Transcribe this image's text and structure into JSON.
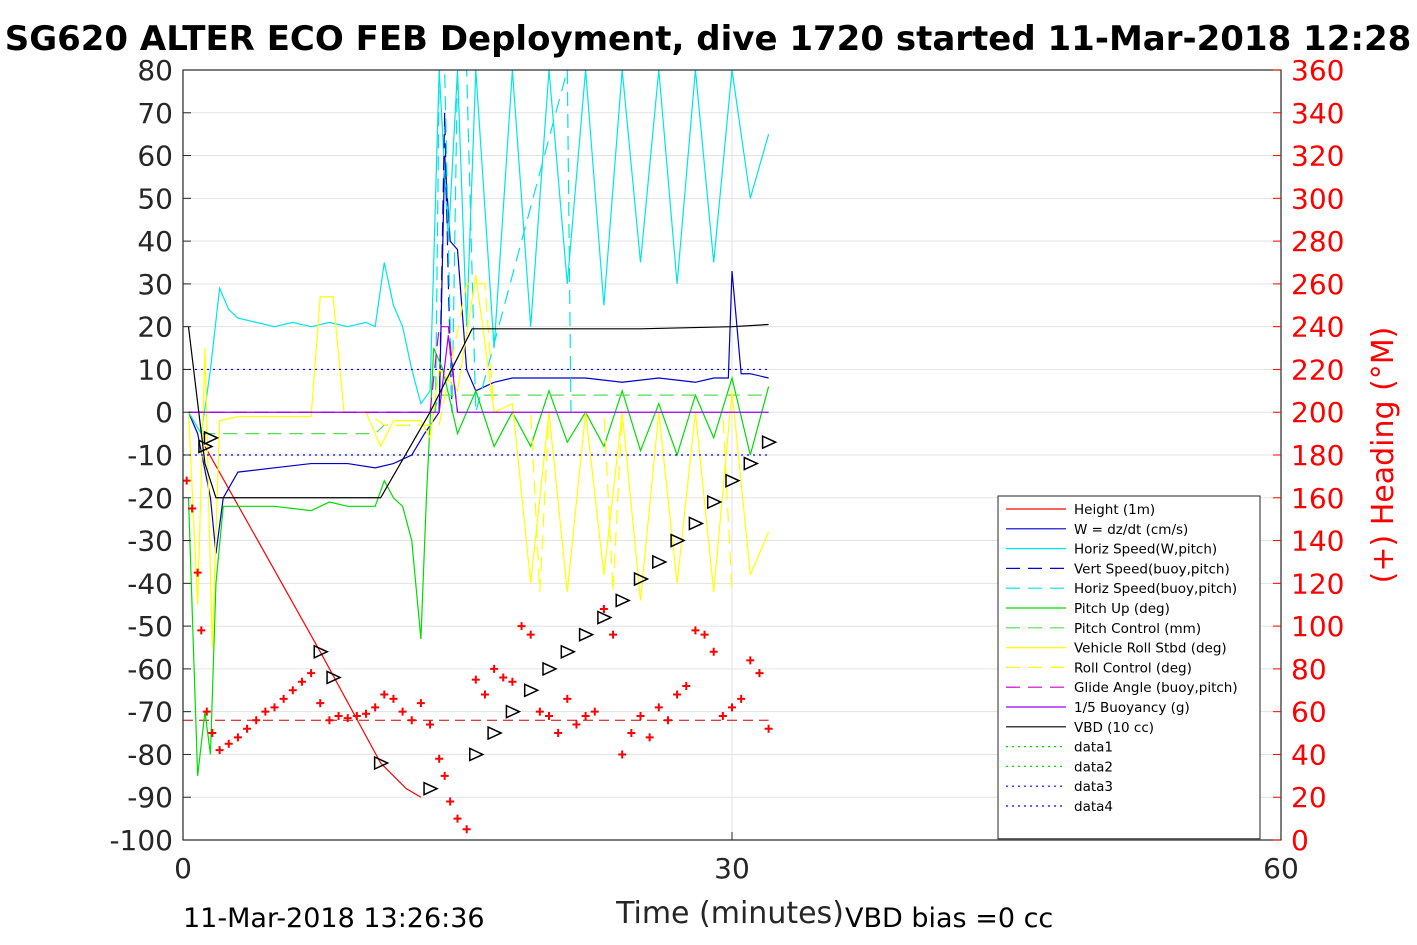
{
  "chart_data": {
    "type": "line",
    "title": "SG620 ALTER ECO FEB Deployment, dive 1720 started 11-Mar-2018 12:28",
    "xlabel": "Time (minutes)",
    "ylabel": "",
    "y2label": "(+) Heading (°M)",
    "xlim": [
      0,
      60
    ],
    "ylim": [
      -100,
      80
    ],
    "y2lim": [
      0,
      360
    ],
    "xticks": [
      0,
      30,
      60
    ],
    "yticks": [
      80,
      70,
      60,
      50,
      40,
      30,
      20,
      10,
      0,
      -10,
      -20,
      -30,
      -40,
      -50,
      -60,
      -70,
      -80,
      -90,
      -100
    ],
    "y2ticks": [
      360,
      340,
      320,
      300,
      280,
      260,
      240,
      220,
      200,
      180,
      160,
      140,
      120,
      100,
      80,
      60,
      40,
      20,
      0
    ],
    "grid": true,
    "legend_position": "right",
    "footer_left": "11-Mar-2018 13:26:36",
    "footer_right": "VBD bias =0 cc",
    "colors": {
      "height": "#ff0000",
      "w": "#0000cc",
      "horiz_speed": "#00e5e5",
      "pitch": "#00dd00",
      "roll": "#ffff00",
      "glide": "#cc00cc",
      "vbd": "#000000",
      "heading": "#ff0000",
      "data3": "#0000ff"
    },
    "series": [
      {
        "name": "Height (1m)",
        "style": "solid",
        "color": "#ff0000",
        "x": [
          1.2,
          7.5,
          10.8,
          12.2,
          13.0
        ],
        "y": [
          -8,
          -56,
          -82,
          -88,
          -90
        ]
      },
      {
        "name": "W = dz/dt (cm/s)",
        "style": "solid",
        "color": "#0000cc",
        "x": [
          0.3,
          0.8,
          1.5,
          1.8,
          2.2,
          3,
          5,
          7,
          9,
          10.5,
          11.5,
          12.5,
          13.2,
          14.0,
          14.3,
          14.6,
          15.0,
          15.5,
          16,
          17,
          18,
          20,
          22,
          24,
          26,
          28,
          29,
          29.8,
          30,
          30.5,
          31,
          32
        ],
        "y": [
          0,
          -5,
          -20,
          -33,
          -20,
          -14,
          -13,
          -12,
          -12,
          -13,
          -12,
          -10,
          -5,
          0,
          60,
          40,
          38,
          10,
          5,
          7,
          8,
          8,
          8,
          7,
          8,
          7,
          8,
          8,
          33,
          9,
          9,
          8
        ]
      },
      {
        "name": "Horiz Speed(W,pitch)",
        "style": "solid",
        "color": "#00e5e5",
        "x": [
          0.3,
          1,
          1.5,
          2,
          2.5,
          3,
          4,
          5,
          6,
          7,
          8,
          9,
          10,
          10.5,
          11,
          11.5,
          12,
          12.5,
          13.0,
          13.5,
          14,
          14.5,
          15,
          15.5,
          16,
          17,
          18,
          19,
          20,
          21,
          22,
          23,
          24,
          25,
          26,
          27,
          28,
          29,
          30,
          31,
          32
        ],
        "y": [
          0,
          -5,
          10,
          29,
          24,
          22,
          21,
          20,
          21,
          20,
          21,
          20,
          21,
          20,
          35,
          25,
          20,
          10,
          2,
          5,
          80,
          40,
          80,
          20,
          80,
          15,
          80,
          20,
          80,
          30,
          80,
          25,
          80,
          35,
          80,
          30,
          80,
          35,
          80,
          50,
          65
        ]
      },
      {
        "name": "Vert Speed(buoy,pitch)",
        "style": "dashed",
        "color": "#0000cc",
        "x": [
          14.0,
          14.3,
          14.5,
          14.7
        ],
        "y": [
          0,
          70,
          30,
          0
        ]
      },
      {
        "name": "Horiz Speed(buoy,pitch)",
        "style": "dashed",
        "color": "#00e5e5",
        "x": [
          13.8,
          14.0,
          14.3,
          14.7,
          15,
          15.5,
          16,
          21.0,
          21.2
        ],
        "y": [
          0,
          80,
          80,
          0,
          80,
          80,
          0,
          80,
          0
        ]
      },
      {
        "name": "Pitch Up (deg)",
        "style": "solid",
        "color": "#00dd00",
        "x": [
          0.3,
          0.8,
          1.2,
          1.5,
          1.8,
          2.2,
          3,
          5,
          7,
          8,
          9,
          10,
          10.5,
          11,
          11.5,
          12,
          12.5,
          13.0,
          13.3,
          13.7,
          14.2,
          15,
          16,
          17,
          18,
          19,
          20,
          21,
          22,
          23,
          24,
          25,
          26,
          27,
          28,
          29,
          30,
          31,
          32
        ],
        "y": [
          -20,
          -85,
          -70,
          -80,
          -40,
          -22,
          -22,
          -22,
          -23,
          -21,
          -22,
          -22,
          -22,
          -16,
          -20,
          -22,
          -30,
          -53,
          -20,
          15,
          10,
          -5,
          5,
          -8,
          0,
          -8,
          5,
          -7,
          0,
          -8,
          5,
          -9,
          2,
          -10,
          4,
          -6,
          8,
          -10,
          6
        ]
      },
      {
        "name": "Pitch Control (mm)",
        "style": "dashed",
        "color": "#55dd55",
        "x": [
          1,
          4,
          8,
          10.5,
          11,
          13.5,
          14,
          32
        ],
        "y": [
          -5,
          -5,
          -5,
          -5,
          -3,
          -3,
          4,
          4
        ]
      },
      {
        "name": "Vehicle Roll Stbd (deg)",
        "style": "solid",
        "color": "#ffff00",
        "x": [
          0.3,
          0.8,
          1.2,
          1.6,
          2,
          3,
          5,
          7,
          7.5,
          8.2,
          8.8,
          10,
          10.8,
          11.5,
          13,
          13.5,
          14,
          15,
          16,
          17,
          18,
          19,
          20,
          21,
          22,
          23,
          24,
          25,
          26,
          27,
          28,
          29,
          30,
          31,
          32
        ],
        "y": [
          0,
          -45,
          15,
          -55,
          -2,
          -1,
          -1,
          -1,
          27,
          27,
          0,
          0,
          -8,
          -2,
          -2,
          -6,
          10,
          5,
          32,
          0,
          2,
          -40,
          0,
          -42,
          0,
          -38,
          0,
          -44,
          0,
          -40,
          0,
          -42,
          5,
          -38,
          -28
        ]
      },
      {
        "name": "Roll Control (deg)",
        "style": "dashed",
        "color": "#ffff00",
        "x": [
          1,
          6,
          10,
          11,
          14,
          15.5,
          16.5,
          17,
          19,
          19.5,
          20,
          23,
          23.5,
          24,
          29.5,
          30
        ],
        "y": [
          0,
          0,
          0,
          -3,
          -3,
          30,
          30,
          0,
          0,
          -42,
          0,
          0,
          -42,
          0,
          0,
          -42
        ]
      },
      {
        "name": "Glide Angle (buoy,pitch)",
        "style": "dashed",
        "color": "#cc00cc",
        "x": [
          0.3,
          13.5,
          14.0,
          14.5,
          15
        ],
        "y": [
          0,
          0,
          20,
          20,
          0
        ]
      },
      {
        "name": "1/5 Buoyancy (g)",
        "style": "solid",
        "color": "#9900ff",
        "x": [
          0.3,
          14,
          14.5,
          15,
          32
        ],
        "y": [
          0,
          0,
          18,
          0,
          0
        ]
      },
      {
        "name": "VBD (10 cc)",
        "style": "solid",
        "color": "#000000",
        "x": [
          0.3,
          1.2,
          1.8,
          10.8,
          13.5,
          15.8,
          25,
          30,
          32
        ],
        "y": [
          20,
          -12,
          -20,
          -20,
          0,
          19.5,
          19.5,
          20,
          20.5
        ]
      },
      {
        "name": "data1",
        "style": "dotted",
        "color": "#00dd00",
        "x": [],
        "y": []
      },
      {
        "name": "data2",
        "style": "dotted",
        "color": "#00dd00",
        "x": [],
        "y": []
      },
      {
        "name": "data3",
        "style": "dotted",
        "color": "#0000ff",
        "x": [
          0,
          32
        ],
        "y": [
          10,
          10
        ]
      },
      {
        "name": "data4",
        "style": "dotted",
        "color": "#0000ff",
        "x": [
          0,
          32
        ],
        "y": [
          -10,
          -10
        ]
      }
    ],
    "heading_series": {
      "name": "Heading",
      "color": "#ff0000",
      "x": [
        0.2,
        0.5,
        0.8,
        1.0,
        1.3,
        1.6,
        2.0,
        2.5,
        3,
        3.5,
        4,
        4.5,
        5,
        5.5,
        6,
        6.5,
        7,
        7.5,
        8,
        8.5,
        9,
        9.5,
        10,
        10.5,
        11,
        11.5,
        12,
        12.5,
        13,
        13.5,
        14,
        14.3,
        14.6,
        15,
        15.5,
        16,
        16.5,
        17,
        17.5,
        18,
        18.5,
        19,
        19.5,
        20,
        20.5,
        21,
        21.5,
        22,
        22.5,
        23,
        23.5,
        24,
        24.5,
        25,
        25.5,
        26,
        26.5,
        27,
        27.5,
        28,
        28.5,
        29,
        29.5,
        30,
        30.5,
        31,
        31.5,
        32
      ],
      "y": [
        168,
        155,
        125,
        98,
        60,
        50,
        42,
        45,
        48,
        52,
        56,
        60,
        62,
        66,
        70,
        74,
        78,
        64,
        56,
        58,
        57,
        58,
        59,
        62,
        68,
        66,
        60,
        56,
        64,
        54,
        38,
        30,
        18,
        10,
        5,
        75,
        68,
        80,
        76,
        74,
        100,
        96,
        60,
        58,
        50,
        66,
        54,
        58,
        60,
        108,
        96,
        40,
        50,
        58,
        48,
        62,
        56,
        68,
        72,
        98,
        96,
        88,
        58,
        62,
        66,
        84,
        78,
        52
      ]
    },
    "vbd_markers": {
      "color": "#000000",
      "x": [
        1.2,
        1.5,
        7.5,
        8.2,
        10.8,
        13.5,
        16,
        17,
        18,
        19,
        20,
        21,
        22,
        23,
        24,
        25,
        26,
        27,
        28,
        29,
        30,
        31,
        32
      ],
      "y": [
        -8,
        -6,
        -56,
        -62,
        -82,
        -88,
        -80,
        -75,
        -70,
        -65,
        -60,
        -56,
        -52,
        -48,
        -44,
        -39,
        -35,
        -30,
        -26,
        -21,
        -16,
        -12,
        -7
      ]
    },
    "reference_line": {
      "style": "dashed",
      "color": "#cc0000",
      "y": -72
    }
  }
}
